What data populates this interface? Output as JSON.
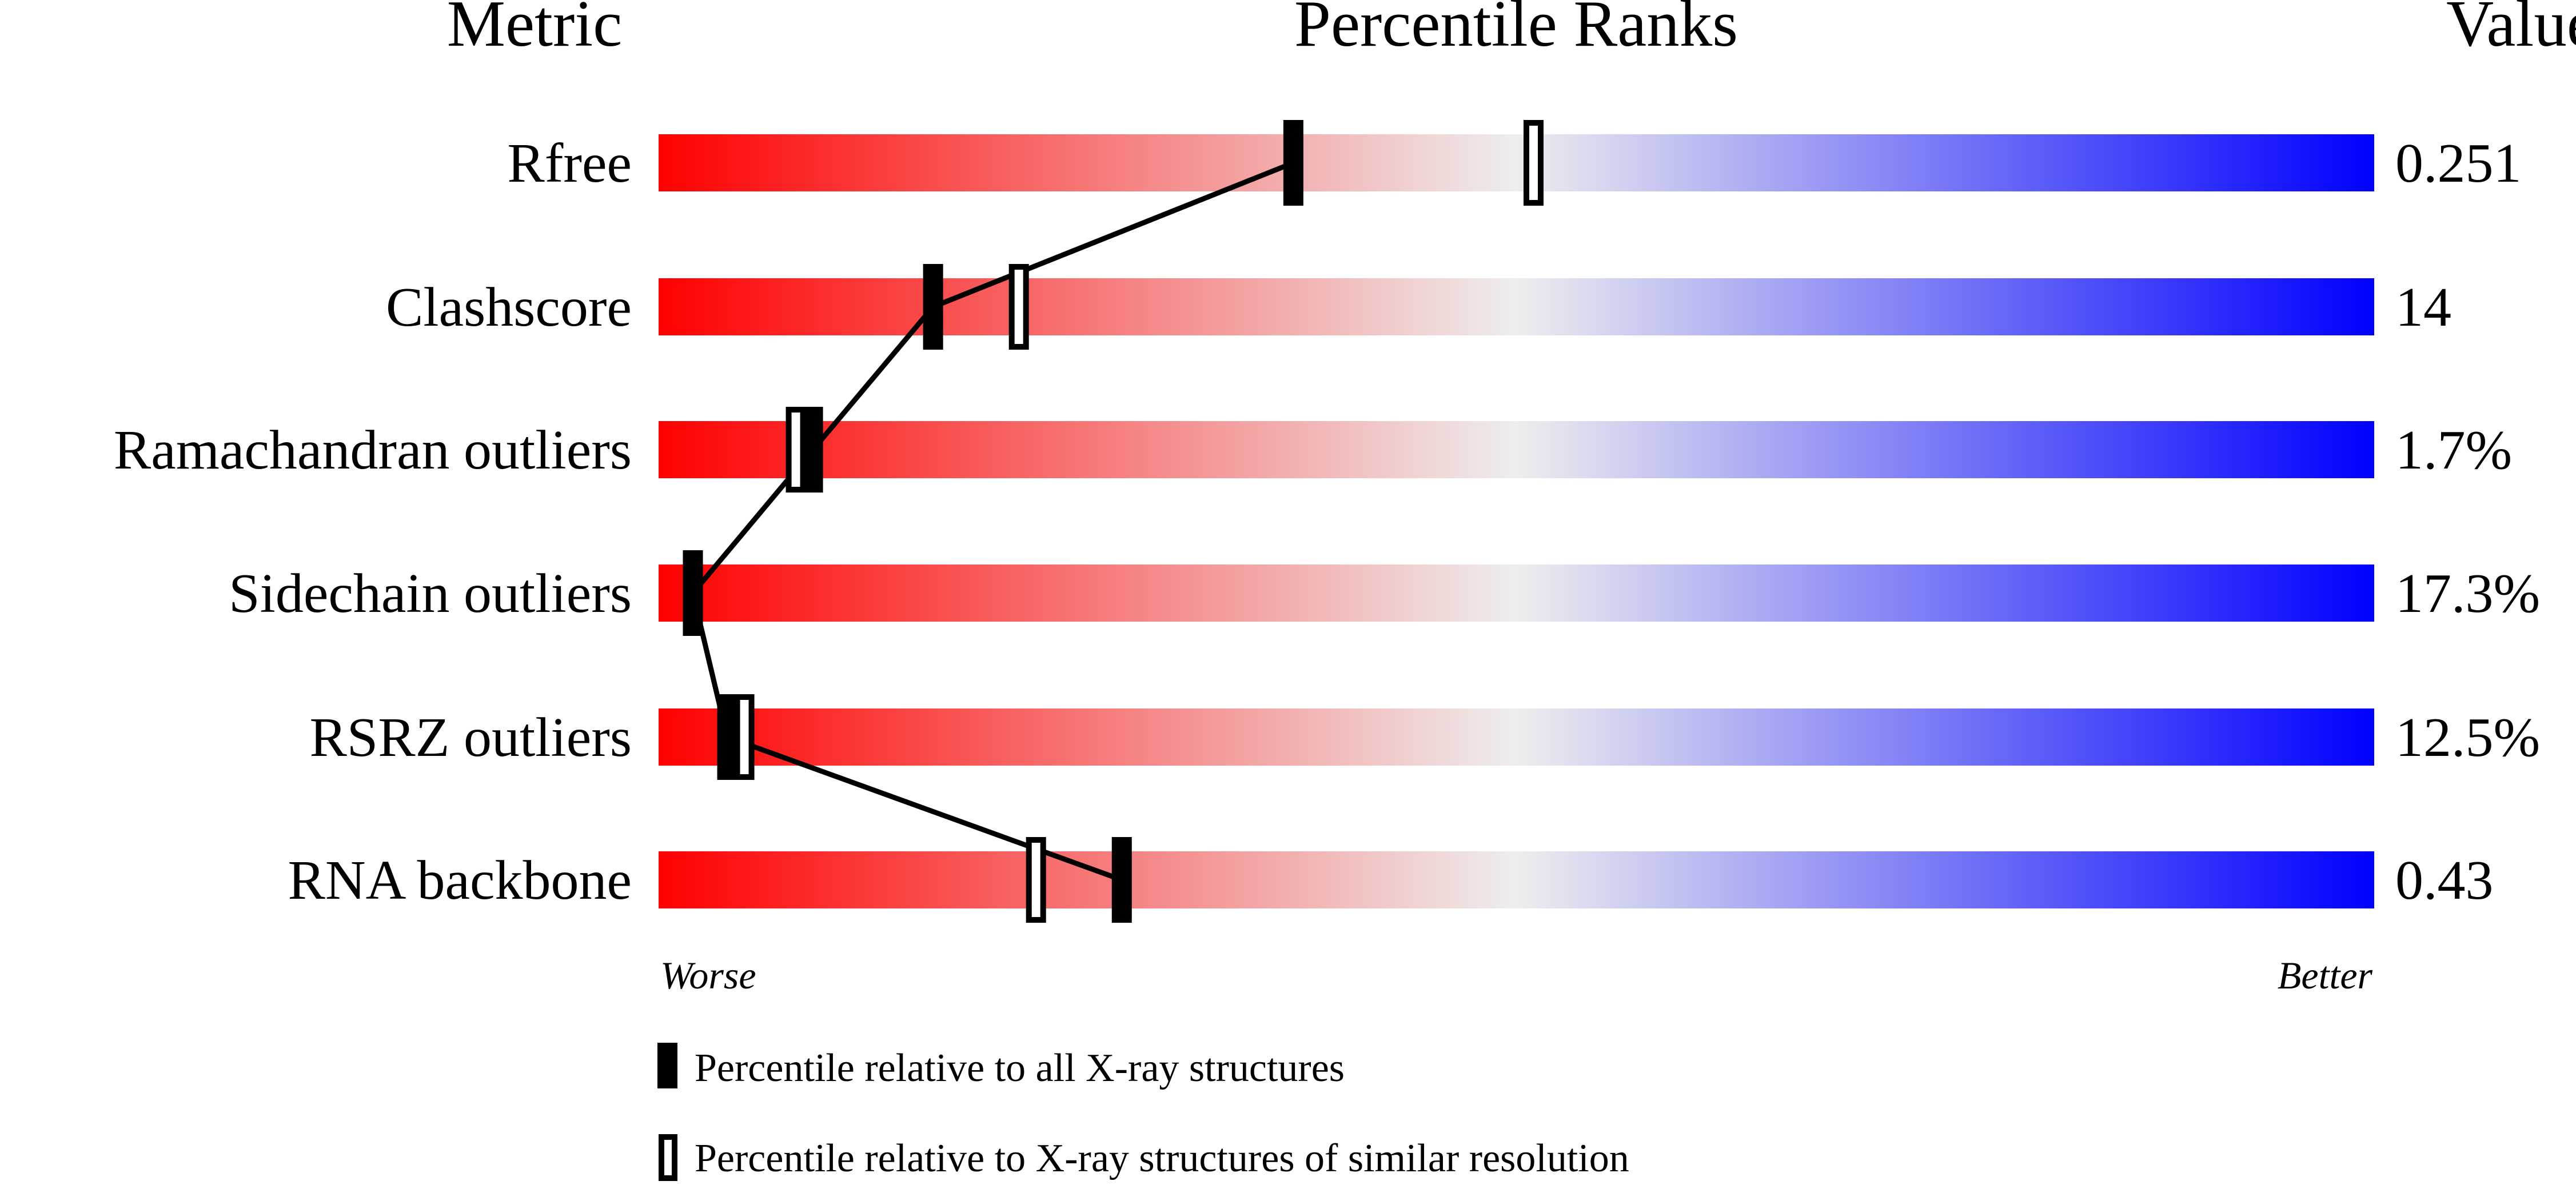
{
  "headers": {
    "metric": "Metric",
    "percentile": "Percentile Ranks",
    "value": "Value"
  },
  "axis": {
    "worse": "Worse",
    "better": "Better"
  },
  "legend": {
    "all": "Percentile relative to all X-ray structures",
    "similar": "Percentile relative to X-ray structures of similar resolution"
  },
  "colors": {
    "worse": "#ff0000",
    "middle": "#eeeeee",
    "better": "#0000ff",
    "marker": "#000000"
  },
  "chart_data": {
    "type": "slider",
    "xlim": [
      0,
      100
    ],
    "rows": [
      {
        "metric": "Rfree",
        "value": "0.251",
        "percentile_all": 37,
        "percentile_similar": 51
      },
      {
        "metric": "Clashscore",
        "value": "14",
        "percentile_all": 16,
        "percentile_similar": 21
      },
      {
        "metric": "Ramachandran outliers",
        "value": "1.7%",
        "percentile_all": 9,
        "percentile_similar": 8
      },
      {
        "metric": "Sidechain outliers",
        "value": "17.3%",
        "percentile_all": 2,
        "percentile_similar": 2
      },
      {
        "metric": "RSRZ outliers",
        "value": "12.5%",
        "percentile_all": 4,
        "percentile_similar": 5
      },
      {
        "metric": "RNA backbone",
        "value": "0.43",
        "percentile_all": 27,
        "percentile_similar": 22
      }
    ]
  }
}
